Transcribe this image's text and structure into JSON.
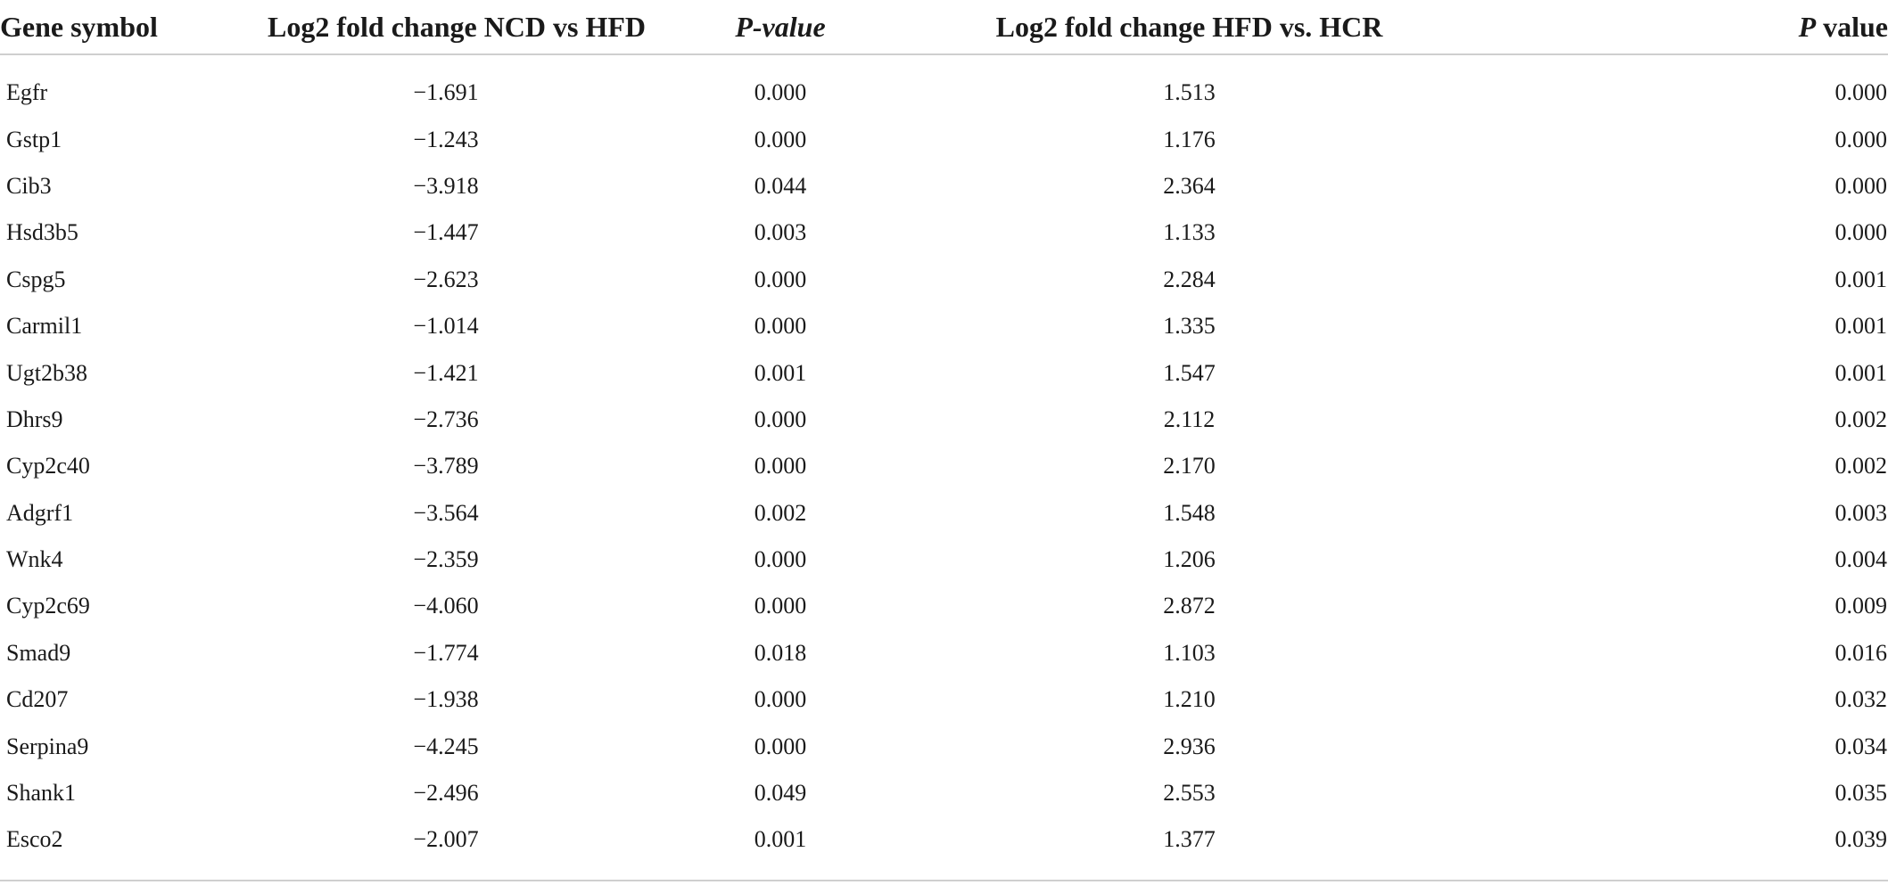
{
  "table": {
    "headers": [
      {
        "label": "Gene symbol",
        "italic": ""
      },
      {
        "label": "Log2 fold change NCD vs HFD",
        "italic": ""
      },
      {
        "label": "P-value",
        "italic": "all"
      },
      {
        "label": "Log2 fold change HFD vs. HCR",
        "italic": ""
      },
      {
        "label": "P",
        "suffix": " value",
        "italic": "prefix"
      }
    ],
    "rows": [
      [
        "Egfr",
        "−1.691",
        "0.000",
        "1.513",
        "0.000"
      ],
      [
        "Gstp1",
        "−1.243",
        "0.000",
        "1.176",
        "0.000"
      ],
      [
        "Cib3",
        "−3.918",
        "0.044",
        "2.364",
        "0.000"
      ],
      [
        "Hsd3b5",
        "−1.447",
        "0.003",
        "1.133",
        "0.000"
      ],
      [
        "Cspg5",
        "−2.623",
        "0.000",
        "2.284",
        "0.001"
      ],
      [
        "Carmil1",
        "−1.014",
        "0.000",
        "1.335",
        "0.001"
      ],
      [
        "Ugt2b38",
        "−1.421",
        "0.001",
        "1.547",
        "0.001"
      ],
      [
        "Dhrs9",
        "−2.736",
        "0.000",
        "2.112",
        "0.002"
      ],
      [
        "Cyp2c40",
        "−3.789",
        "0.000",
        "2.170",
        "0.002"
      ],
      [
        "Adgrf1",
        "−3.564",
        "0.002",
        "1.548",
        "0.003"
      ],
      [
        "Wnk4",
        "−2.359",
        "0.000",
        "1.206",
        "0.004"
      ],
      [
        "Cyp2c69",
        "−4.060",
        "0.000",
        "2.872",
        "0.009"
      ],
      [
        "Smad9",
        "−1.774",
        "0.018",
        "1.103",
        "0.016"
      ],
      [
        "Cd207",
        "−1.938",
        "0.000",
        "1.210",
        "0.032"
      ],
      [
        "Serpina9",
        "−4.245",
        "0.000",
        "2.936",
        "0.034"
      ],
      [
        "Shank1",
        "−2.496",
        "0.049",
        "2.553",
        "0.035"
      ],
      [
        "Esco2",
        "−2.007",
        "0.001",
        "1.377",
        "0.039"
      ]
    ]
  }
}
